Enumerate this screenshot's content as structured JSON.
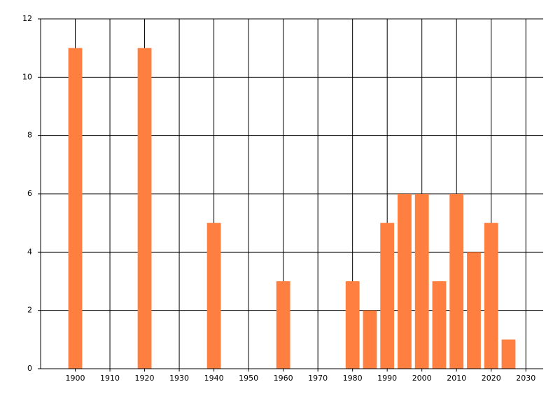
{
  "chart_data": {
    "type": "bar",
    "x": [
      1900,
      1920,
      1940,
      1960,
      1980,
      1985,
      1990,
      1995,
      2000,
      2005,
      2010,
      2015,
      2020,
      2025
    ],
    "values": [
      11,
      11,
      5,
      3,
      3,
      2,
      5,
      6,
      6,
      3,
      6,
      4,
      5,
      1
    ],
    "color": "#ff7f40",
    "xlim": [
      1890,
      2035
    ],
    "xticks": [
      1900,
      1910,
      1920,
      1930,
      1940,
      1950,
      1960,
      1970,
      1980,
      1990,
      2000,
      2010,
      2020,
      2030
    ],
    "ylim": [
      0,
      12
    ],
    "yticks": [
      0,
      2,
      4,
      6,
      8,
      10,
      12
    ],
    "grid": true
  }
}
